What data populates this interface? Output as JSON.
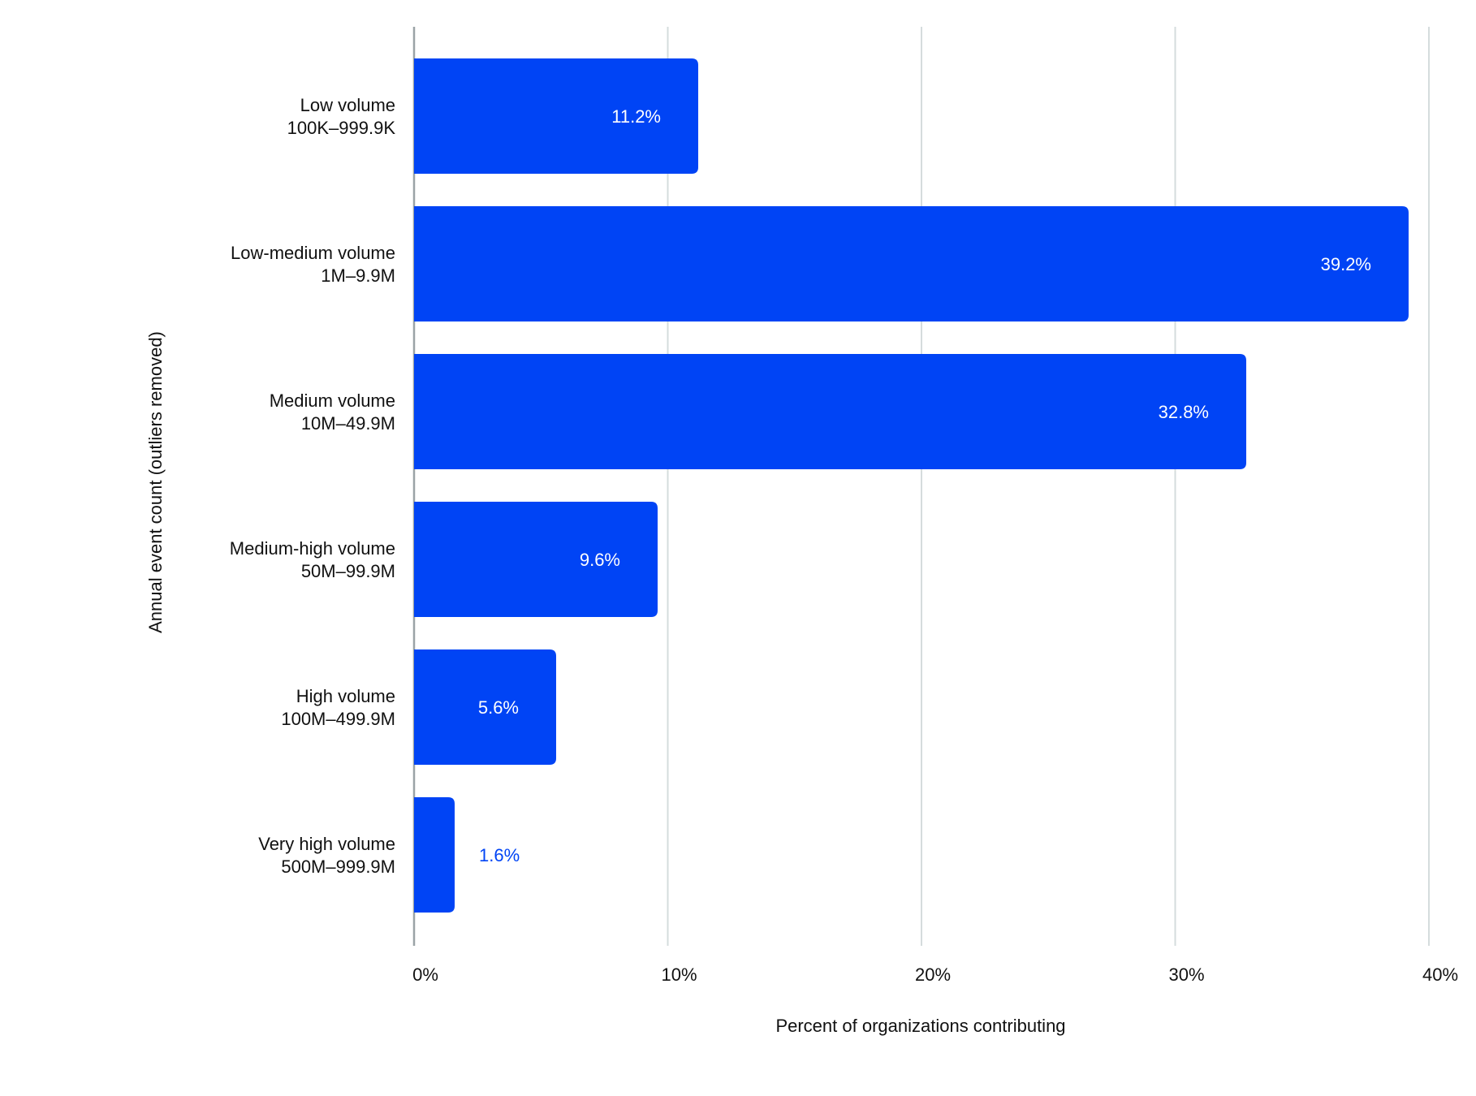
{
  "chart_data": {
    "type": "bar",
    "orientation": "horizontal",
    "title": "",
    "xlabel": "Percent of organizations contributing",
    "ylabel": "Annual event count (outliers removed)",
    "categories": [
      [
        "Low volume",
        "100K–999.9K"
      ],
      [
        "Low-medium volume",
        "1M–9.9M"
      ],
      [
        "Medium volume",
        "10M–49.9M"
      ],
      [
        "Medium-high volume",
        "50M–99.9M"
      ],
      [
        "High volume",
        "100M–499.9M"
      ],
      [
        "Very high volume",
        "500M–999.9M"
      ]
    ],
    "values": [
      11.2,
      39.2,
      32.8,
      9.6,
      5.6,
      1.6
    ],
    "value_labels": [
      "11.2%",
      "39.2%",
      "32.8%",
      "9.6%",
      "5.6%",
      "1.6%"
    ],
    "xlim": [
      0,
      40
    ],
    "xticks": [
      0,
      10,
      20,
      30,
      40
    ],
    "xtick_labels": [
      "0%",
      "10%",
      "20%",
      "30%",
      "40%"
    ],
    "grid": true,
    "legend": "none",
    "colors": {
      "bar": "#0044F5",
      "grid": "#D5DCDD",
      "axis": "#9AA3A6",
      "outside_label": "#0044F5",
      "inside_label": "#FFFFFF"
    }
  }
}
